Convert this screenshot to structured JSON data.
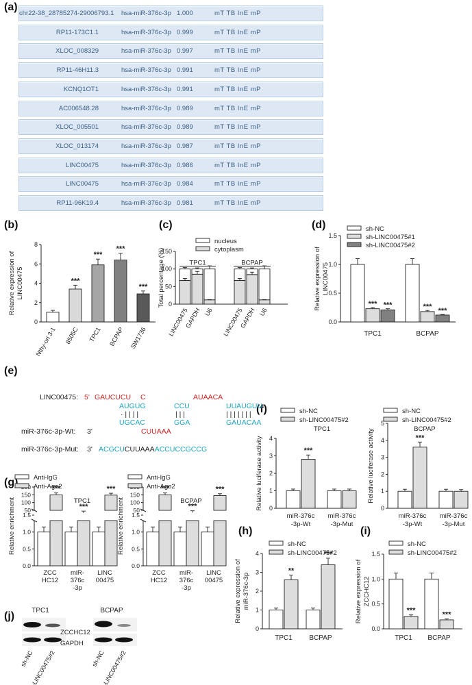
{
  "panels": {
    "a": "(a)",
    "b": "(b)",
    "c": "(c)",
    "d": "(d)",
    "e": "(e)",
    "f": "(f)",
    "g": "(g)",
    "h": "(h)",
    "i": "(i)",
    "j": "(j)"
  },
  "table_a": {
    "rows": [
      [
        "chr22-38_28785274-29006793.1",
        "hsa-miR-376c-3p",
        "1.000",
        "mT TB InE mP"
      ],
      [
        "RP11-173C1.1",
        "hsa-miR-376c-3p",
        "0.999",
        "mT TB InE mP"
      ],
      [
        "XLOC_008329",
        "hsa-miR-376c-3p",
        "0.997",
        "mT TB InE mP"
      ],
      [
        "RP11-46H11.3",
        "hsa-miR-376c-3p",
        "0.991",
        "mT TB InE mP"
      ],
      [
        "KCNQ1OT1",
        "hsa-miR-376c-3p",
        "0.991",
        "mT TB InE mP"
      ],
      [
        "AC006548.28",
        "hsa-miR-376c-3p",
        "0.989",
        "mT TB InE mP"
      ],
      [
        "XLOC_005501",
        "hsa-miR-376c-3p",
        "0.989",
        "mT TB InE mP"
      ],
      [
        "XLOC_013174",
        "hsa-miR-376c-3p",
        "0.987",
        "mT TB InE mP"
      ],
      [
        "LINC00475",
        "hsa-miR-376c-3p",
        "0.986",
        "mT TB InE mP"
      ],
      [
        "LINC00475",
        "hsa-miR-376c-3p",
        "0.984",
        "mT TB InE mP"
      ],
      [
        "RP11-96K19.4",
        "hsa-miR-376c-3p",
        "0.981",
        "mT TB InE mP"
      ]
    ]
  },
  "seq_e": {
    "linc_label": "LINC00475:",
    "linc_5": "5'",
    "linc_s1": "GAUCUCU",
    "linc_s2": "C",
    "linc_s3": "AUAACA",
    "top1": "AUGUG",
    "top2": "CCU",
    "top3": "UUAUGUU",
    "bars1": "· | | | |",
    "bars2": "| | |",
    "bars3": "| | | | | | |",
    "bot1": "UGCAC",
    "bot2": "GGA",
    "bot3": "GAUACAA",
    "wt_label": "miR-376c-3p-Wt:",
    "wt_3": "3'",
    "wt_loop": "CUUAAA",
    "mut_label": "miR-376c-3p-Mut:",
    "mut_3": "3'",
    "mut_s1": "ACGCU",
    "mut_s2": "CUUAAA",
    "mut_s3": "ACCUCCGCCG"
  },
  "blot_j": {
    "group1": "TPC1",
    "group2": "BCPAP",
    "band1": "ZCCHC12",
    "band2": "GAPDH",
    "lane1": "sh-NC",
    "lane2": "sh-LINC00475#2"
  },
  "chart_data": [
    {
      "panel": "b",
      "type": "bar",
      "ylabel": "Relative expression of LINC00475",
      "ylim": [
        0,
        8
      ],
      "yticks": [
        0,
        2,
        4,
        6,
        8
      ],
      "categories": [
        "Nthy-ori 3-1",
        "8505C",
        "TPC1",
        "BCPAP",
        "SW1736"
      ],
      "values": [
        1.0,
        3.4,
        5.9,
        6.4,
        2.9
      ],
      "errors": [
        0.2,
        0.4,
        0.6,
        0.7,
        0.3
      ],
      "sig": [
        "",
        "***",
        "***",
        "***",
        "***"
      ],
      "colors": [
        "#ffffff",
        "#d9d9d9",
        "#a6a6a6",
        "#808080",
        "#595959"
      ]
    },
    {
      "panel": "c",
      "type": "bar",
      "ylabel": "Total percentage (%)",
      "ylim": [
        0,
        150
      ],
      "yticks": [
        0,
        50,
        100,
        150
      ],
      "legend": [
        "nucleus",
        "cytoplasm"
      ],
      "groups": [
        "TPC1",
        "BCPAP"
      ],
      "categories": [
        "LINC00475",
        "GAPDH",
        "U6",
        "LINC00475",
        "GAPDH",
        "U6"
      ],
      "nucleus": [
        67,
        85,
        12,
        67,
        84,
        12
      ],
      "cytoplasm": [
        33,
        15,
        88,
        33,
        16,
        88
      ],
      "errors_total": [
        4,
        3,
        9,
        4,
        3,
        9
      ],
      "errors_nucleus": [
        6,
        8,
        1,
        6,
        7,
        1
      ]
    },
    {
      "panel": "d",
      "type": "bar",
      "ylabel": "Relative expression of LINC00475",
      "ylim": [
        0,
        1.5
      ],
      "yticks": [
        0.0,
        0.5,
        1.0,
        1.5
      ],
      "categories": [
        "TPC1",
        "BCPAP"
      ],
      "series": [
        {
          "name": "sh-NC",
          "values": [
            1.0,
            1.0
          ]
        },
        {
          "name": "sh-LINC00475#1",
          "values": [
            0.23,
            0.18
          ]
        },
        {
          "name": "sh-LINC00475#2",
          "values": [
            0.21,
            0.12
          ]
        }
      ],
      "errors": [
        [
          0.1,
          0.1
        ],
        [
          0.02,
          0.02
        ],
        [
          0.02,
          0.01
        ]
      ],
      "sig": [
        "",
        "***",
        "***"
      ]
    },
    {
      "panel": "f",
      "type": "bar",
      "title": "TPC1",
      "ylabel": "Relative luciferase activity",
      "ylim": [
        0,
        4
      ],
      "yticks": [
        0,
        1,
        2,
        3,
        4
      ],
      "categories": [
        "miR-376c -3p-Wt",
        "miR-376c -3p-Mut"
      ],
      "series": [
        {
          "name": "sh-NC",
          "values": [
            1.0,
            1.0
          ]
        },
        {
          "name": "sh-LINC00475#2",
          "values": [
            2.8,
            1.0
          ]
        }
      ],
      "errors": [
        [
          0.1,
          0.1
        ],
        [
          0.25,
          0.1
        ]
      ],
      "sig": [
        "***",
        ""
      ]
    },
    {
      "panel": "f",
      "type": "bar",
      "title": "BCPAP",
      "ylabel": "Relative luciferase activity",
      "ylim": [
        0,
        5
      ],
      "yticks": [
        0,
        1,
        2,
        3,
        4,
        5
      ],
      "categories": [
        "miR-376c -3p-Wt",
        "miR-376c -3p-Mut"
      ],
      "series": [
        {
          "name": "sh-NC",
          "values": [
            1.0,
            1.0
          ]
        },
        {
          "name": "sh-LINC00475#2",
          "values": [
            3.6,
            1.0
          ]
        }
      ],
      "errors": [
        [
          0.12,
          0.12
        ],
        [
          0.3,
          0.1
        ]
      ],
      "sig": [
        "***",
        ""
      ]
    },
    {
      "panel": "g",
      "type": "bar",
      "title": "TPC1",
      "ylabel": "Relative enrichment",
      "yticks_low": [
        "0.0",
        "0.5",
        "1.0",
        "1.5"
      ],
      "yticks_high": [
        "50",
        "100",
        "150",
        "200"
      ],
      "categories": [
        "ZCC HC12",
        "miR- 376c -3p",
        "LINC 00475"
      ],
      "series": [
        {
          "name": "Anti-IgG",
          "values": [
            1.0,
            1.0,
            1.0
          ]
        },
        {
          "name": "Anti-Ago2",
          "values": [
            150,
            33,
            148
          ]
        }
      ],
      "sig": [
        "***",
        "***",
        "***"
      ]
    },
    {
      "panel": "g",
      "type": "bar",
      "title": "BCPAP",
      "ylabel": "Relative enrichment",
      "yticks_low": [
        "0.0",
        "0.5",
        "1.0",
        "1.5"
      ],
      "yticks_high": [
        "50",
        "100",
        "150",
        "200"
      ],
      "categories": [
        "ZCC HC12",
        "miR- 376c -3p",
        "LINC 00475"
      ],
      "series": [
        {
          "name": "Anti-IgG",
          "values": [
            1.0,
            1.0,
            1.0
          ]
        },
        {
          "name": "Anti-Ago2",
          "values": [
            150,
            35,
            145
          ]
        }
      ],
      "sig": [
        "***",
        "***",
        "***"
      ]
    },
    {
      "panel": "h",
      "type": "bar",
      "ylabel": "Relative expression of miR-376c-3p",
      "ylim": [
        0,
        4
      ],
      "yticks": [
        0,
        1,
        2,
        3,
        4
      ],
      "categories": [
        "TPC1",
        "BCPAP"
      ],
      "series": [
        {
          "name": "sh-NC",
          "values": [
            1.0,
            1.0
          ]
        },
        {
          "name": "sh-LINC00475#2",
          "values": [
            2.6,
            3.4
          ]
        }
      ],
      "errors": [
        [
          0.1,
          0.1
        ],
        [
          0.25,
          0.35
        ]
      ],
      "sig": [
        "**",
        "***"
      ]
    },
    {
      "panel": "i",
      "type": "bar",
      "ylabel": "Relative expression of ZCCHC12",
      "ylim": [
        0,
        1.5
      ],
      "yticks": [
        0.0,
        0.5,
        1.0,
        1.5
      ],
      "categories": [
        "TPC1",
        "BCPAP"
      ],
      "series": [
        {
          "name": "sh-NC",
          "values": [
            1.0,
            1.0
          ]
        },
        {
          "name": "sh-LINC00475#2",
          "values": [
            0.25,
            0.18
          ]
        }
      ],
      "errors": [
        [
          0.12,
          0.12
        ],
        [
          0.03,
          0.02
        ]
      ],
      "sig": [
        "***",
        "***"
      ]
    }
  ]
}
